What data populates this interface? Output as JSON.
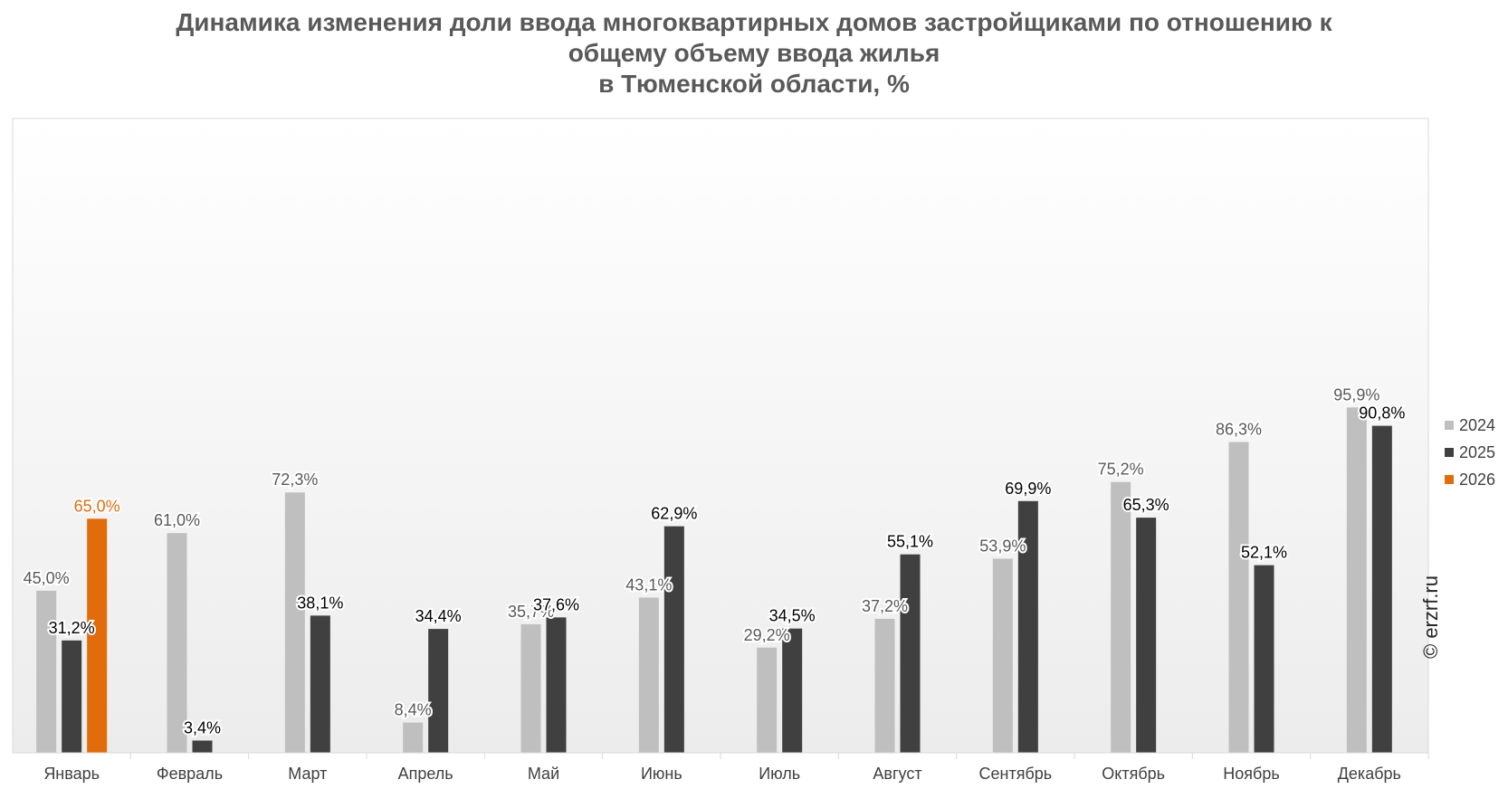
{
  "title": {
    "line1": "Динамика изменения доли ввода многоквартирных домов застройщиками по отношению к",
    "line2": "общему объему ввода жилья",
    "line3": "в Тюменской области, %"
  },
  "watermark": "© erzrf.ru",
  "colors": {
    "2024": "#bfbfbf",
    "2025": "#404040",
    "2026": "#e36c0a",
    "label_2024": "#595959",
    "label_2025": "#000000",
    "label_2026": "#e36c0a"
  },
  "legend": [
    {
      "name": "2024",
      "color": "#bfbfbf"
    },
    {
      "name": "2025",
      "color": "#404040"
    },
    {
      "name": "2026",
      "color": "#e36c0a"
    }
  ],
  "chart_data": {
    "type": "bar",
    "title": "Динамика изменения доли ввода многоквартирных домов застройщиками по отношению к общему объему ввода жилья в Тюменской области, %",
    "categories": [
      "Январь",
      "Февраль",
      "Март",
      "Апрель",
      "Май",
      "Июнь",
      "Июль",
      "Август",
      "Сентябрь",
      "Октябрь",
      "Ноябрь",
      "Декабрь"
    ],
    "series": [
      {
        "name": "2024",
        "values": [
          45.0,
          61.0,
          72.3,
          8.4,
          35.7,
          43.1,
          29.2,
          37.2,
          53.9,
          75.2,
          86.3,
          95.9
        ],
        "labels": [
          "45,0%",
          "61,0%",
          "72,3%",
          "8,4%",
          "35,7%",
          "43,1%",
          "29,2%",
          "37,2%",
          "53,9%",
          "75,2%",
          "86,3%",
          "95,9%"
        ]
      },
      {
        "name": "2025",
        "values": [
          31.2,
          3.4,
          38.1,
          34.4,
          37.6,
          62.9,
          34.5,
          55.1,
          69.9,
          65.3,
          52.1,
          90.8
        ],
        "labels": [
          "31,2%",
          "3,4%",
          "38,1%",
          "34,4%",
          "37,6%",
          "62,9%",
          "34,5%",
          "55,1%",
          "69,9%",
          "65,3%",
          "52,1%",
          "90,8%"
        ]
      },
      {
        "name": "2026",
        "values": [
          65.0,
          null,
          null,
          null,
          null,
          null,
          null,
          null,
          null,
          null,
          null,
          null
        ],
        "labels": [
          "65,0%",
          "",
          "",
          "",
          "",
          "",
          "",
          "",
          "",
          "",
          "",
          ""
        ]
      }
    ],
    "ylim": [
      0,
      120
    ],
    "legend_position": "right",
    "grid": false
  }
}
